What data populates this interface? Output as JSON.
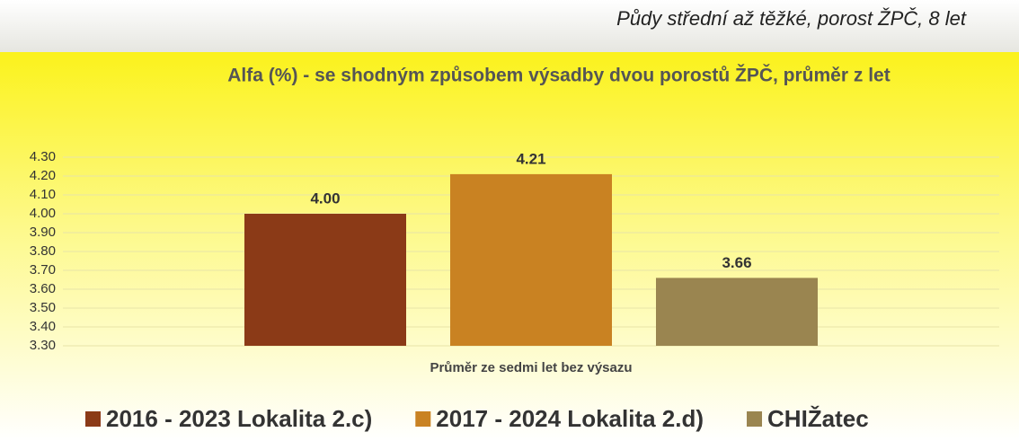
{
  "header": {
    "title": "Půdy střední až těžké, porost ŽPČ, 8 let"
  },
  "chart_data": {
    "type": "bar",
    "title": "Alfa (%) - se shodným způsobem výsadby dvou porostů ŽPČ, průměr z let",
    "categories": [
      "Průměr ze sedmi let bez výsazu"
    ],
    "series": [
      {
        "name": "2016 - 2023 Lokalita 2.c)",
        "color": "#8b3a17",
        "values": [
          4.0
        ],
        "value_labels": [
          "4.00"
        ]
      },
      {
        "name": "2017 - 2024 Lokalita 2.d)",
        "color": "#c98222",
        "values": [
          4.21
        ],
        "value_labels": [
          "4.21"
        ]
      },
      {
        "name": "CHIŽatec",
        "color": "#9a8550",
        "values": [
          3.66
        ],
        "value_labels": [
          "3.66"
        ]
      }
    ],
    "ylim": [
      3.3,
      4.3
    ],
    "yticks": [
      {
        "value": 3.3,
        "label": "3.30"
      },
      {
        "value": 3.4,
        "label": "3.40"
      },
      {
        "value": 3.5,
        "label": "3.50"
      },
      {
        "value": 3.6,
        "label": "3.60"
      },
      {
        "value": 3.7,
        "label": "3.70"
      },
      {
        "value": 3.8,
        "label": "3.80"
      },
      {
        "value": 3.9,
        "label": "3.90"
      },
      {
        "value": 4.0,
        "label": "4.00"
      },
      {
        "value": 4.1,
        "label": "4.10"
      },
      {
        "value": 4.2,
        "label": "4.20"
      },
      {
        "value": 4.3,
        "label": "4.30"
      }
    ],
    "grid": true,
    "legend": "bottom"
  }
}
